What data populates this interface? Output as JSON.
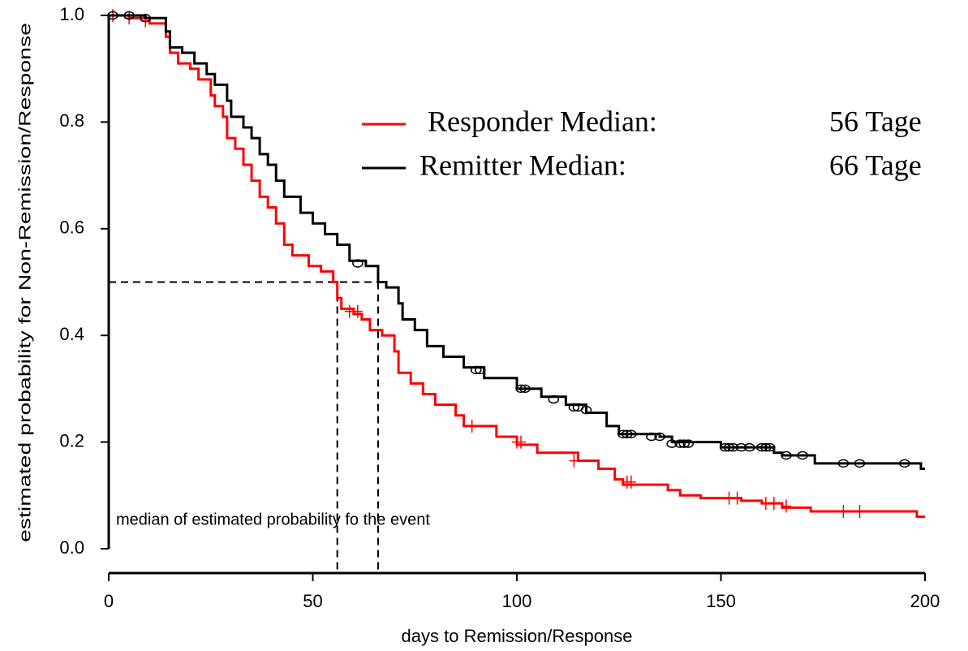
{
  "chart_data": {
    "type": "step",
    "xlabel": "days to Remission/Response",
    "ylabel": "estimated probability for Non-Remission/Response",
    "annotation": "median of estimated probability fo the event",
    "median_level": 0.5,
    "xlim": [
      0,
      200
    ],
    "xticks": [
      0,
      50,
      100,
      150,
      200
    ],
    "ylim": [
      0,
      1
    ],
    "yticks": [
      {
        "value": 0,
        "label": "0.0"
      },
      {
        "value": 0.2,
        "label": "0.2"
      },
      {
        "value": 0.4,
        "label": "0.4"
      },
      {
        "value": 0.6,
        "label": "0.6"
      },
      {
        "value": 0.8,
        "label": "0.8"
      },
      {
        "value": 1,
        "label": "1.0"
      }
    ],
    "series": [
      {
        "name": "Responder Median:",
        "color": "#ff0000",
        "median": 56,
        "median_label": "56 Tage",
        "censor_marker": "plus",
        "x": [
          0,
          5,
          10,
          14,
          15,
          17,
          20,
          22,
          25,
          26,
          28,
          29,
          31,
          33,
          35,
          37,
          39,
          41,
          43,
          45,
          49,
          52,
          55,
          56,
          57,
          60,
          62,
          64,
          67,
          70,
          71,
          74,
          77,
          80,
          85,
          87,
          95,
          100,
          105,
          115,
          120,
          124,
          126,
          137,
          140,
          145,
          155,
          160,
          165,
          172,
          198,
          200
        ],
        "values": [
          1.0,
          0.995,
          0.985,
          0.96,
          0.93,
          0.91,
          0.9,
          0.88,
          0.85,
          0.83,
          0.81,
          0.77,
          0.75,
          0.72,
          0.69,
          0.66,
          0.64,
          0.61,
          0.57,
          0.55,
          0.53,
          0.52,
          0.5,
          0.47,
          0.45,
          0.44,
          0.43,
          0.41,
          0.4,
          0.37,
          0.33,
          0.31,
          0.29,
          0.27,
          0.25,
          0.23,
          0.21,
          0.195,
          0.18,
          0.165,
          0.15,
          0.13,
          0.12,
          0.11,
          0.1,
          0.095,
          0.09,
          0.085,
          0.077,
          0.07,
          0.06,
          0.06
        ],
        "censor_x": [
          1,
          5,
          9,
          59,
          61,
          89,
          100,
          101,
          114,
          127,
          128,
          152,
          154,
          161,
          163,
          166,
          180,
          184
        ],
        "censor_values": [
          1.0,
          0.995,
          0.99,
          0.445,
          0.445,
          0.23,
          0.2,
          0.2,
          0.165,
          0.125,
          0.125,
          0.095,
          0.095,
          0.085,
          0.085,
          0.08,
          0.07,
          0.07
        ]
      },
      {
        "name": "Remitter Median:",
        "color": "#000000",
        "median": 66,
        "median_label": "66 Tage",
        "censor_marker": "circle",
        "x": [
          0,
          9,
          14,
          15,
          18,
          21,
          24,
          26,
          29,
          30,
          33,
          35,
          37,
          39,
          41,
          43,
          47,
          50,
          53,
          56,
          59,
          63,
          66,
          68,
          71,
          72,
          75,
          78,
          82,
          87,
          92,
          100,
          106,
          112,
          117,
          122,
          125,
          135,
          138,
          150,
          163,
          165,
          173,
          199,
          200
        ],
        "values": [
          1.0,
          0.995,
          0.97,
          0.94,
          0.93,
          0.91,
          0.89,
          0.87,
          0.84,
          0.81,
          0.79,
          0.77,
          0.74,
          0.72,
          0.69,
          0.66,
          0.63,
          0.61,
          0.59,
          0.57,
          0.54,
          0.53,
          0.5,
          0.49,
          0.46,
          0.43,
          0.41,
          0.38,
          0.36,
          0.34,
          0.32,
          0.3,
          0.285,
          0.27,
          0.255,
          0.23,
          0.215,
          0.21,
          0.2,
          0.19,
          0.18,
          0.175,
          0.16,
          0.15,
          0.15
        ],
        "censor_x": [
          1,
          5,
          9,
          61,
          90,
          91,
          101,
          102,
          109,
          114,
          115,
          117,
          126,
          127,
          128,
          133,
          135,
          138,
          140,
          141,
          142,
          151,
          152,
          153,
          155,
          157,
          160,
          161,
          162,
          166,
          170,
          180,
          184,
          195
        ],
        "censor_values": [
          1.0,
          1.0,
          0.995,
          0.535,
          0.335,
          0.335,
          0.3,
          0.3,
          0.28,
          0.265,
          0.265,
          0.26,
          0.215,
          0.215,
          0.215,
          0.21,
          0.21,
          0.197,
          0.197,
          0.197,
          0.197,
          0.19,
          0.19,
          0.19,
          0.19,
          0.19,
          0.19,
          0.19,
          0.19,
          0.175,
          0.175,
          0.16,
          0.16,
          0.16
        ]
      }
    ]
  }
}
